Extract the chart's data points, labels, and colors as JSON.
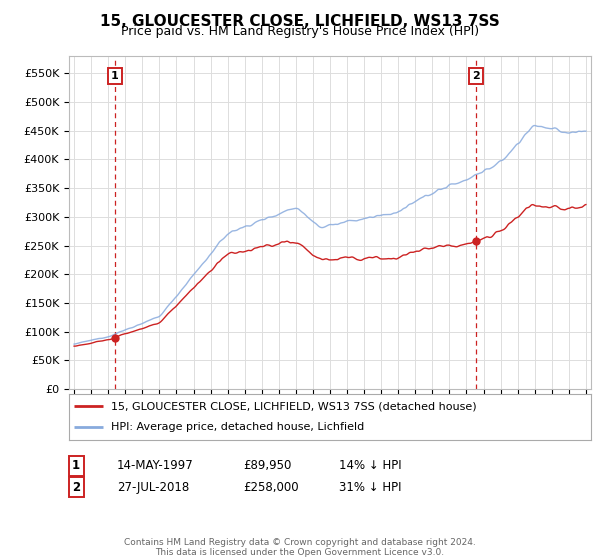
{
  "title": "15, GLOUCESTER CLOSE, LICHFIELD, WS13 7SS",
  "subtitle": "Price paid vs. HM Land Registry's House Price Index (HPI)",
  "ylabel_ticks": [
    "£0",
    "£50K",
    "£100K",
    "£150K",
    "£200K",
    "£250K",
    "£300K",
    "£350K",
    "£400K",
    "£450K",
    "£500K",
    "£550K"
  ],
  "ytick_vals": [
    0,
    50000,
    100000,
    150000,
    200000,
    250000,
    300000,
    350000,
    400000,
    450000,
    500000,
    550000
  ],
  "ylim": [
    0,
    580000
  ],
  "xlim_start": 1994.7,
  "xlim_end": 2025.3,
  "sale1_year": 1997.37,
  "sale1_price": 89950,
  "sale2_year": 2018.57,
  "sale2_price": 258000,
  "line1_color": "#cc2222",
  "line2_color": "#88aadd",
  "vline_color": "#cc2222",
  "grid_color": "#dddddd",
  "bg_color": "#ffffff",
  "legend1_label": "15, GLOUCESTER CLOSE, LICHFIELD, WS13 7SS (detached house)",
  "legend2_label": "HPI: Average price, detached house, Lichfield",
  "footer": "Contains HM Land Registry data © Crown copyright and database right 2024.\nThis data is licensed under the Open Government Licence v3.0.",
  "table_rows": [
    {
      "num": "1",
      "date": "14-MAY-1997",
      "price": "£89,950",
      "pct": "14% ↓ HPI"
    },
    {
      "num": "2",
      "date": "27-JUL-2018",
      "price": "£258,000",
      "pct": "31% ↓ HPI"
    }
  ]
}
